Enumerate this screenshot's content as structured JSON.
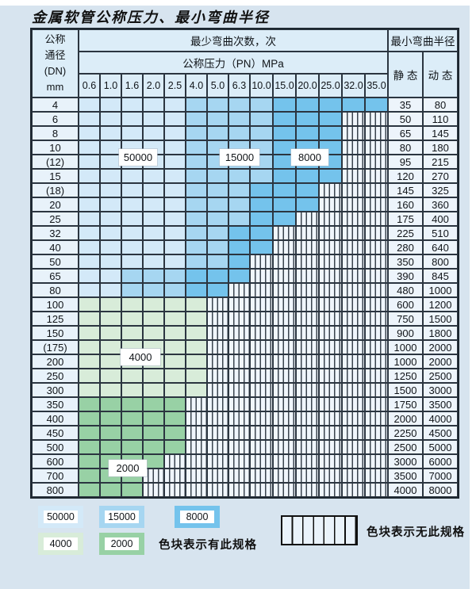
{
  "title": "金属软管公称压力、最小弯曲半径",
  "colors": {
    "page_bg": "#d7e4ef",
    "blue_light_50000": "#d3e9f8",
    "blue_mid_15000": "#a6d6f1",
    "blue_dark_8000": "#74c3ec",
    "green_light_4000": "#d8ecd9",
    "green_mid_2000": "#98d1a5",
    "header_bg": "#dcedf8",
    "label_bg": "#e8f2fa",
    "hatch_bg": "#f0f6fc",
    "grid_line": "#2b3540"
  },
  "table": {
    "corner_lines": [
      "公称",
      "通径",
      "(DN)",
      "mm"
    ],
    "bend_header": "最少弯曲次数，次",
    "pressure_header": "公称压力（PN）MPa",
    "pressure_columns": [
      "0.6",
      "1.0",
      "1.6",
      "2.0",
      "2.5",
      "4.0",
      "5.0",
      "6.3",
      "10.0",
      "15.0",
      "20.0",
      "25.0",
      "32.0",
      "35.0"
    ],
    "radius_header": "最小弯曲半径",
    "static_header": "静 态",
    "dynamic_header": "动 态",
    "cell_code_meaning": {
      "L": "50000",
      "M": "15000",
      "D": "8000",
      "G": "4000",
      "E": "2000",
      "H": "无此规格"
    },
    "rows": [
      {
        "dn": "4",
        "cells": "LLLLLMMMMDDDDD",
        "static": "35",
        "dynamic": "80"
      },
      {
        "dn": "6",
        "cells": "LLLLLMMMMDDDHH",
        "static": "50",
        "dynamic": "110"
      },
      {
        "dn": "8",
        "cells": "LLLLLMMMMDDDHH",
        "static": "65",
        "dynamic": "145"
      },
      {
        "dn": "10",
        "cells": "LLLLLMMMMDDDHH",
        "static": "80",
        "dynamic": "180"
      },
      {
        "dn": "(12)",
        "cells": "LLLLLMMMMDDDHH",
        "static": "95",
        "dynamic": "215"
      },
      {
        "dn": "15",
        "cells": "LLLLLMMMMDDDHH",
        "static": "120",
        "dynamic": "270"
      },
      {
        "dn": "(18)",
        "cells": "LLLLLMMMDDDHHH",
        "static": "145",
        "dynamic": "325"
      },
      {
        "dn": "20",
        "cells": "LLLLLMMMDDDHHH",
        "static": "160",
        "dynamic": "360"
      },
      {
        "dn": "25",
        "cells": "LLLLLMMMDDHHHH",
        "static": "175",
        "dynamic": "400"
      },
      {
        "dn": "32",
        "cells": "LLLLLMMDDHHHHH",
        "static": "225",
        "dynamic": "510"
      },
      {
        "dn": "40",
        "cells": "LLLLLMMDDHHHHH",
        "static": "280",
        "dynamic": "640"
      },
      {
        "dn": "50",
        "cells": "LLLLLMMDHHHHHH",
        "static": "350",
        "dynamic": "800"
      },
      {
        "dn": "65",
        "cells": "LLMMMDDDHHHHHH",
        "static": "390",
        "dynamic": "845"
      },
      {
        "dn": "80",
        "cells": "LLMMMDDHHHHHHH",
        "static": "480",
        "dynamic": "1000"
      },
      {
        "dn": "100",
        "cells": "GGGGGGHHHHHHHH",
        "static": "600",
        "dynamic": "1200"
      },
      {
        "dn": "125",
        "cells": "GGGGGGHHHHHHHH",
        "static": "750",
        "dynamic": "1500"
      },
      {
        "dn": "150",
        "cells": "GGGGGGHHHHHHHH",
        "static": "900",
        "dynamic": "1800"
      },
      {
        "dn": "(175)",
        "cells": "GGGGGGHHHHHHHH",
        "static": "1000",
        "dynamic": "2000"
      },
      {
        "dn": "200",
        "cells": "GGGGGGHHHHHHHH",
        "static": "1000",
        "dynamic": "2000"
      },
      {
        "dn": "250",
        "cells": "GGGGGGHHHHHHHH",
        "static": "1250",
        "dynamic": "2500"
      },
      {
        "dn": "300",
        "cells": "GGGGGGHHHHHHHH",
        "static": "1500",
        "dynamic": "3000"
      },
      {
        "dn": "350",
        "cells": "EEEEEHHHHHHHHH",
        "static": "1750",
        "dynamic": "3500"
      },
      {
        "dn": "400",
        "cells": "EEEEEHHHHHHHHH",
        "static": "2000",
        "dynamic": "4000"
      },
      {
        "dn": "450",
        "cells": "EEEEEHHHHHHHHH",
        "static": "2250",
        "dynamic": "4500"
      },
      {
        "dn": "500",
        "cells": "EEEEEHHHHHHHHH",
        "static": "2500",
        "dynamic": "5000"
      },
      {
        "dn": "600",
        "cells": "EEEEHHHHHHHHHH",
        "static": "3000",
        "dynamic": "6000"
      },
      {
        "dn": "700",
        "cells": "EEEHHHHHHHHHHH",
        "static": "3500",
        "dynamic": "7000"
      },
      {
        "dn": "800",
        "cells": "EEEHHHHHHHHHHH",
        "static": "4000",
        "dynamic": "8000"
      }
    ]
  },
  "overlays": [
    {
      "label": "50000"
    },
    {
      "label": "15000"
    },
    {
      "label": "8000"
    },
    {
      "label": "4000"
    },
    {
      "label": "2000"
    }
  ],
  "legend": {
    "swatches": [
      {
        "label": "50000",
        "shade": "L"
      },
      {
        "label": "15000",
        "shade": "M"
      },
      {
        "label": "8000",
        "shade": "D"
      },
      {
        "label": "4000",
        "shade": "G"
      },
      {
        "label": "2000",
        "shade": "E"
      }
    ],
    "has_spec_text": "色块表示有此规格",
    "no_spec_text": "色块表示无此规格"
  }
}
